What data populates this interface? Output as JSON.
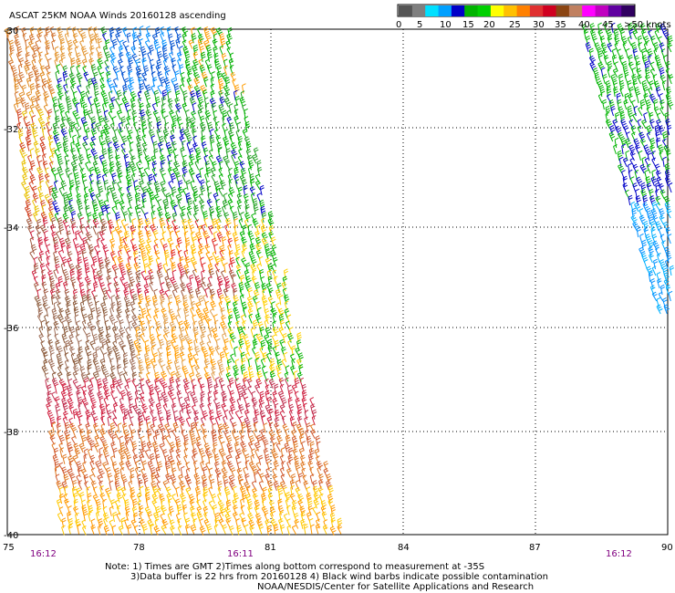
{
  "title": "ASCAT 25KM NOAA Winds 20160128 ascending",
  "lat_labels": [
    "-30",
    "-32",
    "-34",
    "-36",
    "-38",
    "-40"
  ],
  "lon_labels": [
    "75",
    "78",
    "81",
    "84",
    "87",
    "90"
  ],
  "time_labels": [
    "16:12",
    "16:11",
    "16:12"
  ],
  "legend": {
    "tick_labels": [
      "0",
      "5",
      "10",
      "15",
      "20",
      "25",
      "30",
      "35",
      "40",
      "45",
      ">50 knots"
    ],
    "colors": [
      "#555555",
      "#7f7f7f",
      "#00e0ff",
      "#00a0ff",
      "#0000c8",
      "#00b400",
      "#00d000",
      "#ffff00",
      "#ffc000",
      "#ff8000",
      "#e03030",
      "#d00020",
      "#8b4513",
      "#c08060",
      "#ff00ff",
      "#c000c0",
      "#6000a0",
      "#300060"
    ]
  },
  "notes": {
    "line1": "Note: 1) Times are GMT 2)Times along bottom correspond to measurement at -35S",
    "line2": "3)Data buffer is 22 hrs from 20160128 4) Black wind barbs indicate possible contamination",
    "line3": "NOAA/NESDIS/Center for Satellite Applications and Research"
  }
}
